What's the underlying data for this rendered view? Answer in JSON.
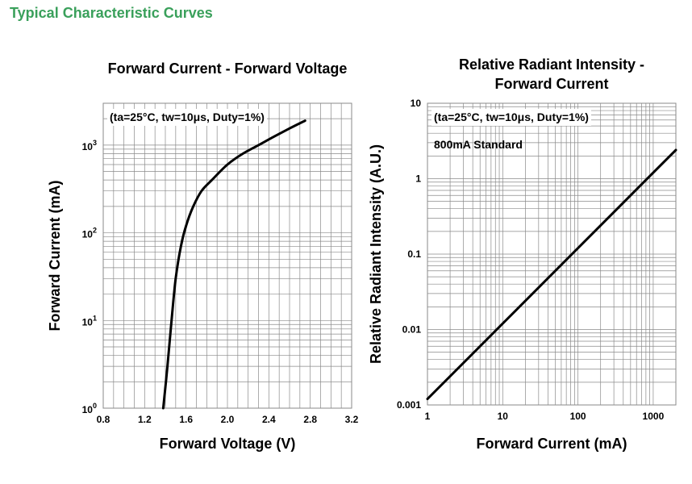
{
  "section_title": "Typical Characteristic Curves",
  "colors": {
    "section_title": "#3aa05b",
    "grid": "#8a8a8a",
    "curve": "#000000"
  },
  "chart_data": [
    {
      "type": "line",
      "title_lines": [
        "Forward Current - Forward Voltage"
      ],
      "xlabel": "Forward Voltage (V)",
      "ylabel": "Forward Current (mA)",
      "xscale": "linear",
      "yscale": "log",
      "xlim": [
        0.8,
        3.2
      ],
      "ylim": [
        1,
        3000
      ],
      "x_ticks": [
        "0.8",
        "1.2",
        "1.6",
        "2.0",
        "2.4",
        "2.8",
        "3.2"
      ],
      "y_ticks": [
        {
          "base": "10",
          "exp": "0"
        },
        {
          "base": "10",
          "exp": "1"
        },
        {
          "base": "10",
          "exp": "2"
        },
        {
          "base": "10",
          "exp": "3"
        }
      ],
      "annotations": [
        "(ta=25°C, tw=10μs, Duty=1%)"
      ],
      "grid": true,
      "series": [
        {
          "x": [
            1.38,
            1.42,
            1.46,
            1.5,
            1.55,
            1.6,
            1.67,
            1.75,
            1.85,
            2.0,
            2.15,
            2.3,
            2.45,
            2.6,
            2.75
          ],
          "y": [
            1,
            3,
            10,
            30,
            70,
            120,
            200,
            300,
            400,
            600,
            800,
            1000,
            1250,
            1550,
            1900
          ]
        }
      ]
    },
    {
      "type": "line",
      "title_lines": [
        "Relative Radiant Intensity -",
        "Forward Current"
      ],
      "xlabel": "Forward Current (mA)",
      "ylabel": "Relative Radiant Intensity (A.U.)",
      "xscale": "log",
      "yscale": "log",
      "xlim": [
        1,
        2000
      ],
      "ylim": [
        0.001,
        10
      ],
      "x_ticks": [
        "1",
        "10",
        "100",
        "1000"
      ],
      "y_ticks": [
        "0.001",
        "0.01",
        "0.1",
        "1",
        "10"
      ],
      "annotations": [
        "(ta=25°C, tw=10μs, Duty=1%)",
        "800mA Standard"
      ],
      "grid": true,
      "series": [
        {
          "x": [
            1,
            10,
            100,
            1000,
            2000
          ],
          "y": [
            0.0012,
            0.012,
            0.12,
            1.2,
            2.4
          ]
        }
      ]
    }
  ]
}
